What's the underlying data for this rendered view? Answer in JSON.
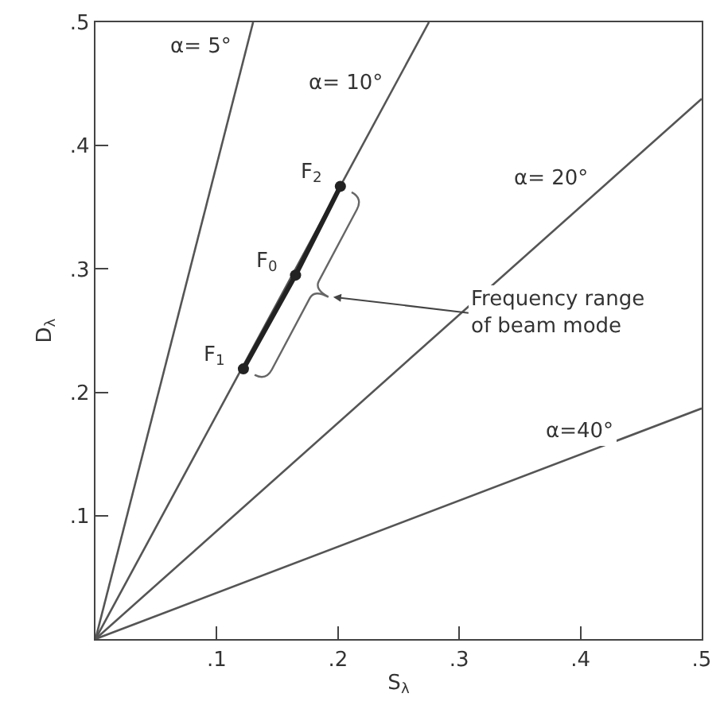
{
  "chart_data": {
    "type": "line",
    "xlabel": "S$_{λ}$",
    "ylabel": "D$_{λ}$",
    "xlim": [
      0,
      0.5
    ],
    "ylim": [
      0,
      0.5
    ],
    "xticks": [
      {
        "value": 0.1,
        "label": ".1"
      },
      {
        "value": 0.2,
        "label": ".2"
      },
      {
        "value": 0.3,
        "label": ".3"
      },
      {
        "value": 0.4,
        "label": ".4"
      },
      {
        "value": 0.5,
        "label": ".5"
      }
    ],
    "yticks": [
      {
        "value": 0.1,
        "label": ".1"
      },
      {
        "value": 0.2,
        "label": ".2"
      },
      {
        "value": 0.3,
        "label": ".3"
      },
      {
        "value": 0.4,
        "label": ".4"
      },
      {
        "value": 0.5,
        "label": ".5"
      }
    ],
    "grid": false,
    "legend": false,
    "line_style": "solid",
    "series": [
      {
        "name": "α= 5°",
        "color": "#555555",
        "x": [
          0,
          0.13
        ],
        "values": [
          0,
          0.5
        ],
        "marker": "none"
      },
      {
        "name": "α= 10°",
        "color": "#555555",
        "x": [
          0,
          0.275
        ],
        "values": [
          0,
          0.5
        ],
        "marker": "none"
      },
      {
        "name": "α= 20°",
        "color": "#555555",
        "x": [
          0,
          0.5
        ],
        "values": [
          0,
          0.438
        ],
        "marker": "none"
      },
      {
        "name": "α=40°",
        "color": "#555555",
        "x": [
          0,
          0.5
        ],
        "values": [
          0,
          0.187
        ],
        "marker": "none"
      },
      {
        "color": "#222222",
        "x": [
          0.122,
          0.165,
          0.202
        ],
        "values": [
          0.219,
          0.295,
          0.367
        ],
        "marker": "circle"
      }
    ],
    "annotations": [
      {
        "text": "F$_{2}$",
        "x": 0.202,
        "y": 0.367
      },
      {
        "text": "F$_{0}$",
        "x": 0.165,
        "y": 0.295
      },
      {
        "text": "F$_{1}$",
        "x": 0.122,
        "y": 0.219
      },
      "Frequency range\nof beam mode"
    ]
  }
}
